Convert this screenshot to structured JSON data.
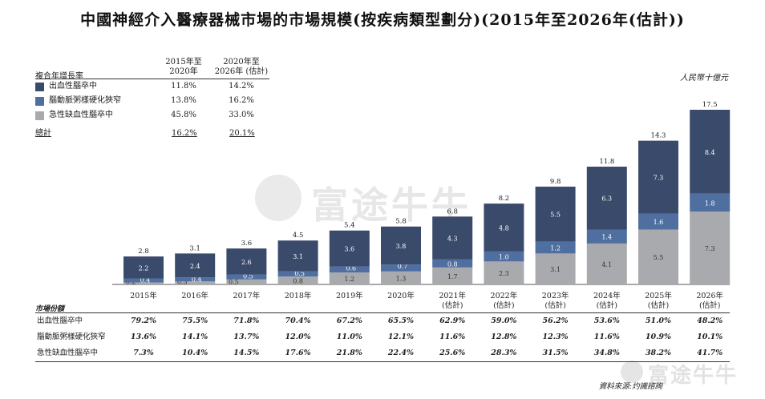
{
  "title": "中國神經介入醫療器械市場的市場規模(按疾病類型劃分)(2015年至2026年(估計))",
  "unit": "人民幣十億元",
  "cagr": {
    "col1": [
      "2015年至",
      "2020年"
    ],
    "col2": [
      "2020年至",
      "2026年 (估計)"
    ],
    "row_title": "複合年增長率",
    "rows": [
      {
        "name": "出血性腦卒中",
        "v1": "11.8%",
        "v2": "14.2%",
        "color": "#3a4a6b"
      },
      {
        "name": "腦動脈粥樣硬化狹窄",
        "v1": "13.8%",
        "v2": "16.2%",
        "color": "#4f6fa0"
      },
      {
        "name": "急性缺血性腦卒中",
        "v1": "45.8%",
        "v2": "33.0%",
        "color": "#a9aaad"
      }
    ],
    "total": {
      "name": "總計",
      "v1": "16.2%",
      "v2": "20.1%"
    }
  },
  "chart_data": {
    "type": "bar",
    "stacked": true,
    "categories": [
      "2015年",
      "2016年",
      "2017年",
      "2018年",
      "2019年",
      "2020年",
      "2021年\n(估計)",
      "2022年\n(估計)",
      "2023年\n(估計)",
      "2024年\n(估計)",
      "2025年\n(估計)",
      "2026年\n(估計)"
    ],
    "series": [
      {
        "name": "急性缺血性腦卒中",
        "color": "#a9aaad",
        "values": [
          0.2,
          0.3,
          0.5,
          0.8,
          1.2,
          1.3,
          1.7,
          2.3,
          3.1,
          4.1,
          5.5,
          7.3
        ]
      },
      {
        "name": "腦動脈粥樣硬化狹窄",
        "color": "#4f6fa0",
        "values": [
          0.4,
          0.4,
          0.5,
          0.5,
          0.6,
          0.7,
          0.8,
          1.0,
          1.2,
          1.4,
          1.6,
          1.8
        ]
      },
      {
        "name": "出血性腦卒中",
        "color": "#3a4a6b",
        "values": [
          2.2,
          2.4,
          2.6,
          3.1,
          3.6,
          3.8,
          4.3,
          4.8,
          5.5,
          6.3,
          7.3,
          8.4
        ]
      }
    ],
    "totals": [
      2.8,
      3.1,
      3.6,
      4.5,
      5.4,
      5.8,
      6.8,
      8.2,
      9.8,
      11.8,
      14.3,
      17.5
    ],
    "ylim": [
      0,
      17.5
    ],
    "grid": false,
    "legend": "top-left"
  },
  "share": {
    "label": "市場份額",
    "rows": [
      {
        "name": "出血性腦卒中",
        "values": [
          "79.2%",
          "75.5%",
          "71.8%",
          "70.4%",
          "67.2%",
          "65.5%",
          "62.9%",
          "59.0%",
          "56.2%",
          "53.6%",
          "51.0%",
          "48.2%"
        ]
      },
      {
        "name": "腦動脈粥樣硬化狹窄",
        "values": [
          "13.6%",
          "14.1%",
          "13.7%",
          "12.0%",
          "11.0%",
          "12.1%",
          "11.6%",
          "12.8%",
          "12.3%",
          "11.6%",
          "10.9%",
          "10.1%"
        ]
      },
      {
        "name": "急性缺血性腦卒中",
        "values": [
          "7.3%",
          "10.4%",
          "14.5%",
          "17.6%",
          "21.8%",
          "22.4%",
          "25.6%",
          "28.3%",
          "31.5%",
          "34.8%",
          "38.2%",
          "41.7%"
        ]
      }
    ]
  },
  "source": "資料來源:灼識諮詢",
  "watermark": "富途牛牛"
}
